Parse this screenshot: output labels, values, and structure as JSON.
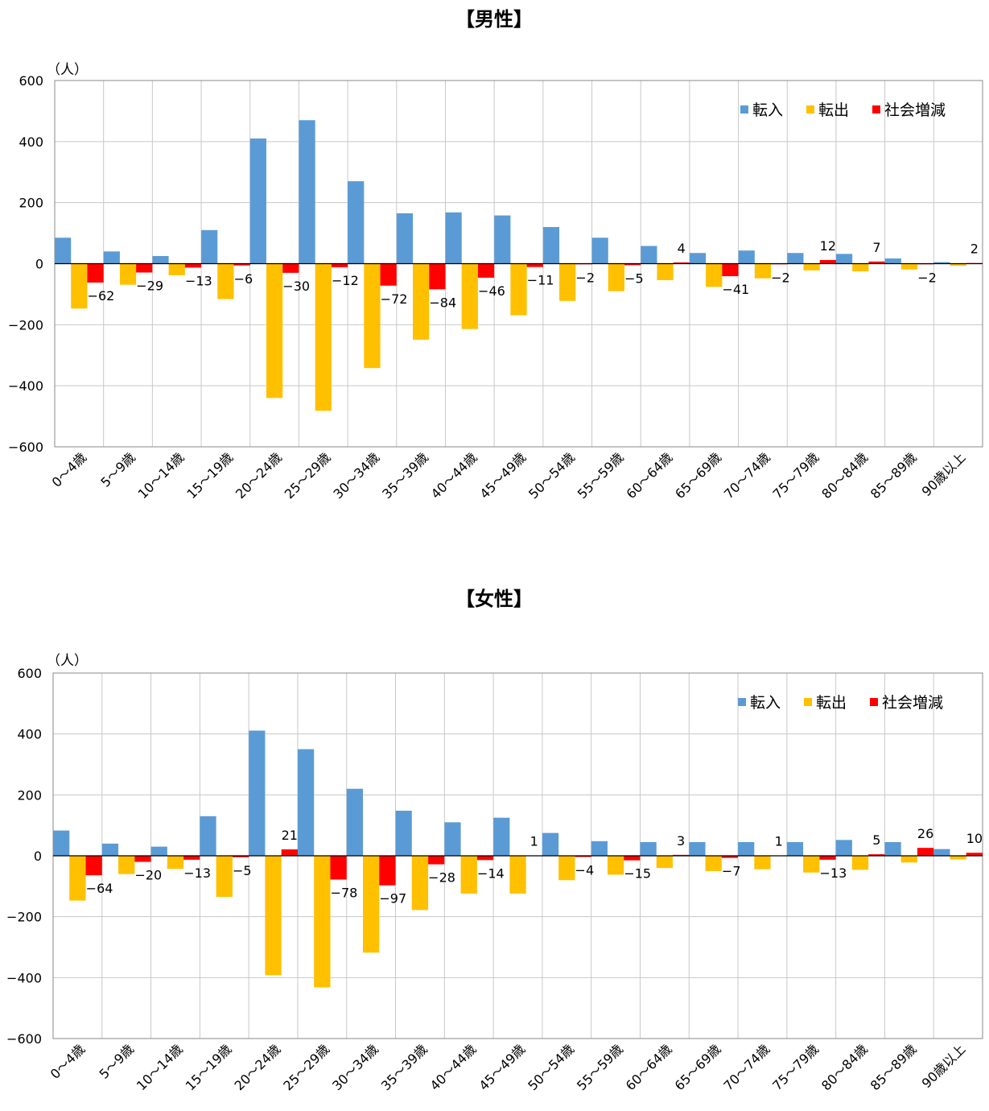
{
  "colors": {
    "tennyu": "#5b9bd5",
    "tenshutsu": "#ffc000",
    "shakai": "#ff0000"
  },
  "chart_data": [
    {
      "type": "bar",
      "title": "【男性】",
      "unit": "（人）",
      "ylim": [
        -600,
        600
      ],
      "yticks": [
        600,
        400,
        200,
        0,
        -200,
        -400,
        -600
      ],
      "ytick_labels": [
        "600",
        "400",
        "200",
        "0",
        "−200",
        "−400",
        "−600"
      ],
      "categories": [
        "0～4歳",
        "5～9歳",
        "10～14歳",
        "15～19歳",
        "20～24歳",
        "25～29歳",
        "30～34歳",
        "35～39歳",
        "40～44歳",
        "45～49歳",
        "50～54歳",
        "55～59歳",
        "60～64歳",
        "65～69歳",
        "70～74歳",
        "75～79歳",
        "80～84歳",
        "85～89歳",
        "90歳以上"
      ],
      "legend": [
        "転入",
        "転出",
        "社会増減"
      ],
      "legend_position": "top-right",
      "series": [
        {
          "name": "転入",
          "values": [
            85,
            40,
            25,
            110,
            410,
            470,
            270,
            165,
            168,
            158,
            120,
            85,
            58,
            35,
            43,
            35,
            32,
            17,
            5
          ]
        },
        {
          "name": "転出",
          "values": [
            -147,
            -69,
            -38,
            -116,
            -440,
            -482,
            -342,
            -249,
            -214,
            -169,
            -122,
            -90,
            -54,
            -76,
            -48,
            -22,
            -25,
            -19,
            -7
          ]
        },
        {
          "name": "社会増減",
          "values": [
            -62,
            -29,
            -13,
            -6,
            -30,
            -12,
            -72,
            -84,
            -46,
            -11,
            -2,
            -5,
            4,
            -41,
            -2,
            12,
            7,
            -2,
            2
          ]
        }
      ],
      "data_labels": [
        "−62",
        "−29",
        "−13",
        "−6",
        "−30",
        "−12",
        "−72",
        "−84",
        "−46",
        "−11",
        "−2",
        "−5",
        "4",
        "−41",
        "−2",
        "12",
        "7",
        "−2",
        "2"
      ]
    },
    {
      "type": "bar",
      "title": "【女性】",
      "unit": "（人）",
      "ylim": [
        -600,
        600
      ],
      "yticks": [
        600,
        400,
        200,
        0,
        -200,
        -400,
        -600
      ],
      "ytick_labels": [
        "600",
        "400",
        "200",
        "0",
        "−200",
        "−400",
        "−600"
      ],
      "categories": [
        "0～4歳",
        "5～9歳",
        "10～14歳",
        "15～19歳",
        "20～24歳",
        "25～29歳",
        "30～34歳",
        "35～39歳",
        "40～44歳",
        "45～49歳",
        "50～54歳",
        "55～59歳",
        "60～64歳",
        "65～69歳",
        "70～74歳",
        "75～79歳",
        "80～84歳",
        "85～89歳",
        "90歳以上"
      ],
      "legend": [
        "転入",
        "転出",
        "社会増減"
      ],
      "legend_position": "top-right",
      "series": [
        {
          "name": "転入",
          "values": [
            83,
            40,
            30,
            130,
            411,
            350,
            220,
            148,
            110,
            125,
            75,
            48,
            45,
            45,
            45,
            45,
            52,
            45,
            22
          ]
        },
        {
          "name": "転出",
          "values": [
            -147,
            -60,
            -43,
            -135,
            -392,
            -432,
            -318,
            -178,
            -124,
            -124,
            -80,
            -62,
            -40,
            -50,
            -44,
            -55,
            -46,
            -22,
            -12
          ]
        },
        {
          "name": "社会増減",
          "values": [
            -64,
            -20,
            -13,
            -5,
            21,
            -78,
            -97,
            -28,
            -14,
            1,
            -4,
            -15,
            3,
            -7,
            1,
            -13,
            5,
            26,
            10
          ]
        }
      ],
      "data_labels": [
        "−64",
        "−20",
        "−13",
        "−5",
        "21",
        "−78",
        "−97",
        "−28",
        "−14",
        "1",
        "−4",
        "−15",
        "3",
        "−7",
        "1",
        "−13",
        "5",
        "26",
        "10"
      ]
    }
  ]
}
